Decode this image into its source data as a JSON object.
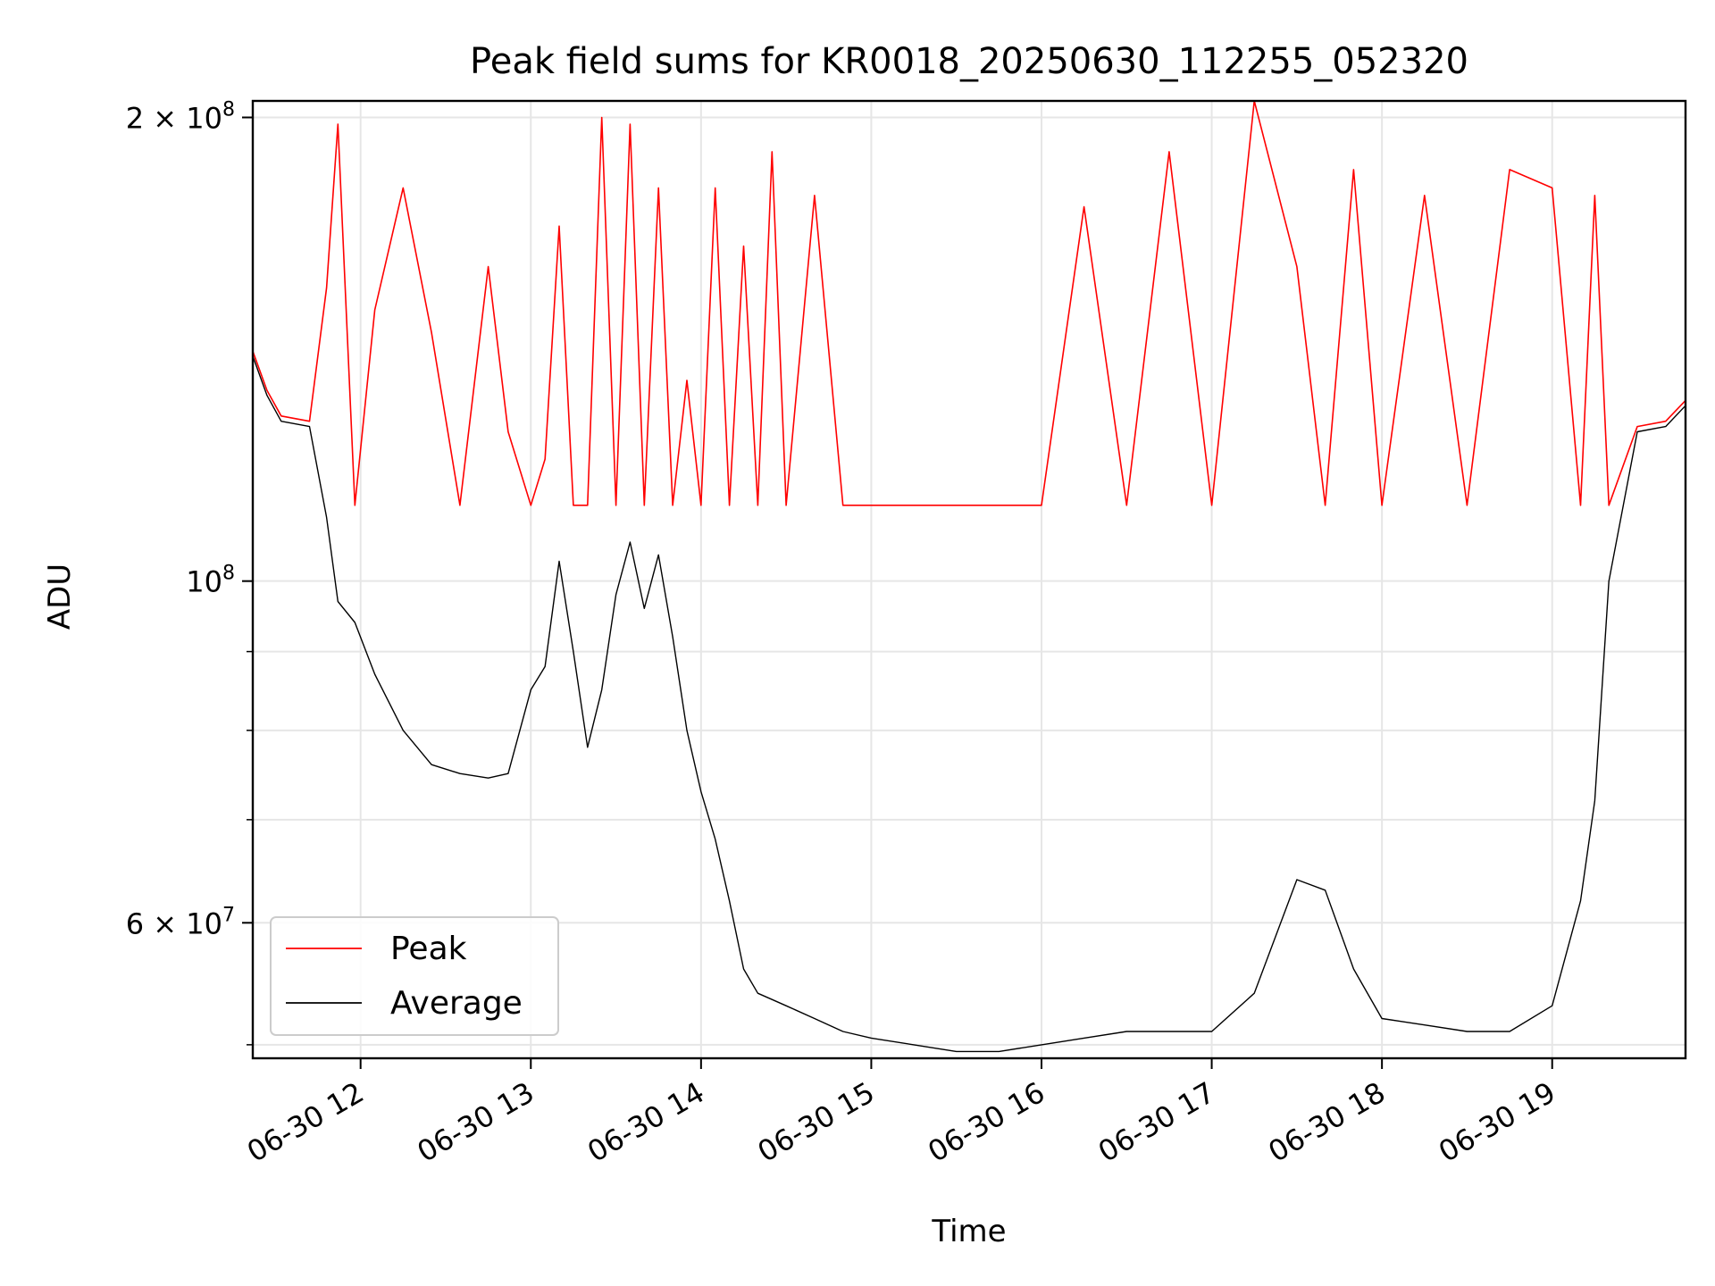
{
  "chart_data": {
    "type": "line",
    "title": "Peak field sums for KR0018_20250630_112255_052320",
    "xlabel": "Time",
    "ylabel": "ADU",
    "y_scale": "log",
    "xlim": [
      "06-30 11:22",
      "06-30 19:47"
    ],
    "ylim": [
      49000000,
      205000000
    ],
    "grid": true,
    "legend": {
      "placement": "lower-left",
      "entries": [
        "Peak",
        "Average"
      ]
    },
    "x_ticks": [
      "06-30 12",
      "06-30 13",
      "06-30 14",
      "06-30 15",
      "06-30 16",
      "06-30 17",
      "06-30 18",
      "06-30 19"
    ],
    "y_ticks_labeled": [
      {
        "value": 200000000,
        "label": "2 × 10^8"
      },
      {
        "value": 100000000,
        "label": "10^8"
      },
      {
        "value": 60000000,
        "label": "6 × 10^7"
      }
    ],
    "y_ticks_minor": [
      50000000,
      70000000,
      80000000,
      90000000
    ],
    "colors": {
      "Peak": "#ff0000",
      "Average": "#000000"
    },
    "series": [
      {
        "name": "Average",
        "x": [
          "06-30 11:22",
          "06-30 11:27",
          "06-30 11:32",
          "06-30 11:42",
          "06-30 11:48",
          "06-30 11:52",
          "06-30 11:58",
          "06-30 12:05",
          "06-30 12:15",
          "06-30 12:25",
          "06-30 12:35",
          "06-30 12:45",
          "06-30 12:52",
          "06-30 13:00",
          "06-30 13:05",
          "06-30 13:10",
          "06-30 13:15",
          "06-30 13:20",
          "06-30 13:25",
          "06-30 13:30",
          "06-30 13:35",
          "06-30 13:40",
          "06-30 13:45",
          "06-30 13:50",
          "06-30 13:55",
          "06-30 14:00",
          "06-30 14:05",
          "06-30 14:10",
          "06-30 14:15",
          "06-30 14:20",
          "06-30 14:25",
          "06-30 14:30",
          "06-30 14:40",
          "06-30 14:50",
          "06-30 15:00",
          "06-30 15:15",
          "06-30 15:30",
          "06-30 15:45",
          "06-30 16:00",
          "06-30 16:15",
          "06-30 16:30",
          "06-30 16:45",
          "06-30 17:00",
          "06-30 17:15",
          "06-30 17:30",
          "06-30 17:40",
          "06-30 17:50",
          "06-30 18:00",
          "06-30 18:15",
          "06-30 18:30",
          "06-30 18:45",
          "06-30 19:00",
          "06-30 19:10",
          "06-30 19:15",
          "06-30 19:20",
          "06-30 19:30",
          "06-30 19:40",
          "06-30 19:47"
        ],
        "values": [
          140000000,
          132000000,
          127000000,
          126000000,
          110000000,
          97000000,
          94000000,
          87000000,
          80000000,
          76000000,
          75000000,
          74500000,
          75000000,
          85000000,
          88000000,
          103000000,
          90000000,
          78000000,
          85000000,
          98000000,
          106000000,
          96000000,
          104000000,
          92000000,
          80000000,
          73000000,
          68000000,
          62000000,
          56000000,
          54000000,
          53500000,
          53000000,
          52000000,
          51000000,
          50500000,
          50000000,
          49500000,
          49500000,
          50000000,
          50500000,
          51000000,
          51000000,
          51000000,
          54000000,
          64000000,
          63000000,
          56000000,
          52000000,
          51500000,
          51000000,
          51000000,
          53000000,
          62000000,
          72000000,
          100000000,
          125000000,
          126000000,
          130000000
        ]
      },
      {
        "name": "Peak",
        "x": [
          "06-30 11:22",
          "06-30 11:27",
          "06-30 11:32",
          "06-30 11:42",
          "06-30 11:48",
          "06-30 11:52",
          "06-30 11:58",
          "06-30 12:05",
          "06-30 12:15",
          "06-30 12:25",
          "06-30 12:35",
          "06-30 12:45",
          "06-30 12:52",
          "06-30 13:00",
          "06-30 13:05",
          "06-30 13:10",
          "06-30 13:15",
          "06-30 13:20",
          "06-30 13:25",
          "06-30 13:30",
          "06-30 13:35",
          "06-30 13:40",
          "06-30 13:45",
          "06-30 13:50",
          "06-30 13:55",
          "06-30 14:00",
          "06-30 14:05",
          "06-30 14:10",
          "06-30 14:15",
          "06-30 14:20",
          "06-30 14:25",
          "06-30 14:30",
          "06-30 14:40",
          "06-30 14:50",
          "06-30 15:00",
          "06-30 15:15",
          "06-30 15:30",
          "06-30 15:45",
          "06-30 16:00",
          "06-30 16:15",
          "06-30 16:30",
          "06-30 16:45",
          "06-30 17:00",
          "06-30 17:15",
          "06-30 17:30",
          "06-30 17:40",
          "06-30 17:50",
          "06-30 18:00",
          "06-30 18:15",
          "06-30 18:30",
          "06-30 18:45",
          "06-30 19:00",
          "06-30 19:10",
          "06-30 19:15",
          "06-30 19:20",
          "06-30 19:30",
          "06-30 19:40",
          "06-30 19:47"
        ],
        "values": [
          141000000,
          133000000,
          128000000,
          127000000,
          155000000,
          198000000,
          112000000,
          150000000,
          180000000,
          145000000,
          112000000,
          160000000,
          125000000,
          112000000,
          120000000,
          170000000,
          112000000,
          112000000,
          200000000,
          112000000,
          198000000,
          112000000,
          180000000,
          112000000,
          135000000,
          112000000,
          180000000,
          112000000,
          165000000,
          112000000,
          190000000,
          112000000,
          178000000,
          112000000,
          112000000,
          112000000,
          112000000,
          112000000,
          112000000,
          175000000,
          112000000,
          190000000,
          112000000,
          205000000,
          160000000,
          112000000,
          185000000,
          112000000,
          178000000,
          112000000,
          185000000,
          180000000,
          112000000,
          178000000,
          112000000,
          126000000,
          127000000,
          131000000
        ]
      }
    ]
  }
}
